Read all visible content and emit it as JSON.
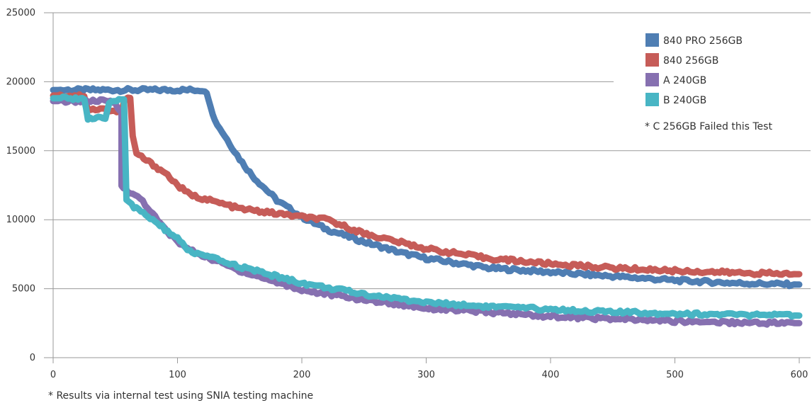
{
  "chart_data": {
    "type": "line",
    "xlim": [
      0,
      600
    ],
    "ylim": [
      0,
      25000
    ],
    "x_ticks": [
      "0",
      "100",
      "200",
      "300",
      "400",
      "500",
      "600"
    ],
    "y_ticks": [
      "0",
      "5000",
      "10000",
      "15000",
      "20000",
      "25000"
    ],
    "grid": "horizontal",
    "legend_position": "top-right",
    "series": [
      {
        "name": "840 PRO 256GB",
        "color": "#4f7eb3",
        "points": [
          [
            0,
            19400
          ],
          [
            20,
            19400
          ],
          [
            40,
            19400
          ],
          [
            60,
            19400
          ],
          [
            80,
            19400
          ],
          [
            100,
            19400
          ],
          [
            122,
            19400
          ],
          [
            125,
            18800
          ],
          [
            130,
            17200
          ],
          [
            140,
            15800
          ],
          [
            150,
            14400
          ],
          [
            160,
            13200
          ],
          [
            170,
            12300
          ],
          [
            180,
            11400
          ],
          [
            200,
            10200
          ],
          [
            220,
            9300
          ],
          [
            250,
            8400
          ],
          [
            280,
            7600
          ],
          [
            300,
            7200
          ],
          [
            350,
            6500
          ],
          [
            400,
            6200
          ],
          [
            450,
            5900
          ],
          [
            500,
            5600
          ],
          [
            550,
            5400
          ],
          [
            600,
            5300
          ]
        ]
      },
      {
        "name": "840 256GB",
        "color": "#c65c58",
        "points": [
          [
            0,
            19000
          ],
          [
            25,
            19000
          ],
          [
            28,
            18000
          ],
          [
            40,
            18000
          ],
          [
            55,
            17800
          ],
          [
            58,
            18800
          ],
          [
            62,
            18800
          ],
          [
            64,
            16000
          ],
          [
            67,
            14800
          ],
          [
            75,
            14300
          ],
          [
            90,
            13400
          ],
          [
            100,
            12500
          ],
          [
            110,
            11800
          ],
          [
            130,
            11300
          ],
          [
            150,
            10800
          ],
          [
            200,
            10200
          ],
          [
            220,
            10000
          ],
          [
            250,
            9000
          ],
          [
            300,
            7900
          ],
          [
            350,
            7200
          ],
          [
            400,
            6800
          ],
          [
            450,
            6500
          ],
          [
            500,
            6300
          ],
          [
            550,
            6150
          ],
          [
            600,
            6050
          ]
        ]
      },
      {
        "name": "A 240GB",
        "color": "#8670b0",
        "points": [
          [
            0,
            18600
          ],
          [
            20,
            18600
          ],
          [
            30,
            18600
          ],
          [
            40,
            18600
          ],
          [
            50,
            18500
          ],
          [
            52,
            18000
          ],
          [
            55,
            18000
          ],
          [
            55,
            12500
          ],
          [
            60,
            12000
          ],
          [
            70,
            11600
          ],
          [
            80,
            10400
          ],
          [
            90,
            9300
          ],
          [
            100,
            8400
          ],
          [
            110,
            7800
          ],
          [
            150,
            6300
          ],
          [
            200,
            4900
          ],
          [
            250,
            4200
          ],
          [
            300,
            3600
          ],
          [
            350,
            3300
          ],
          [
            400,
            3000
          ],
          [
            450,
            2800
          ],
          [
            500,
            2650
          ],
          [
            550,
            2550
          ],
          [
            600,
            2500
          ]
        ]
      },
      {
        "name": "B 240GB",
        "color": "#48b5c4",
        "points": [
          [
            0,
            18800
          ],
          [
            20,
            18800
          ],
          [
            25,
            18800
          ],
          [
            28,
            17300
          ],
          [
            35,
            17300
          ],
          [
            40,
            17400
          ],
          [
            42,
            17200
          ],
          [
            45,
            18500
          ],
          [
            55,
            18800
          ],
          [
            57,
            18800
          ],
          [
            59,
            11500
          ],
          [
            65,
            10900
          ],
          [
            80,
            10000
          ],
          [
            100,
            8600
          ],
          [
            110,
            7700
          ],
          [
            150,
            6600
          ],
          [
            200,
            5400
          ],
          [
            250,
            4600
          ],
          [
            300,
            4000
          ],
          [
            350,
            3700
          ],
          [
            400,
            3500
          ],
          [
            450,
            3300
          ],
          [
            500,
            3200
          ],
          [
            550,
            3100
          ],
          [
            600,
            3050
          ]
        ]
      }
    ],
    "annotation": "* C 256GB Failed this Test",
    "footnote": "* Results via internal test using SNIA testing machine"
  }
}
